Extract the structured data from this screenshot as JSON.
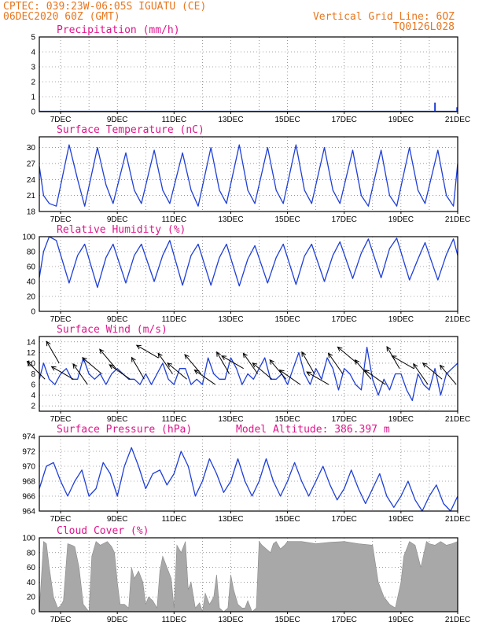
{
  "header": {
    "line1_left": "CPTEC:  039:23W-06:05S  IGUATU (CE)",
    "line2_left": "06DEC2020 60Z (GMT)",
    "line1_right": "Vertical Grid Line: 6OZ",
    "line2_right": "TQ0126L028"
  },
  "colors": {
    "header": "#e8761e",
    "title": "#e0148c",
    "line": "#1f3fd6",
    "cloud": "#a8a8a8",
    "arrow": "#000000"
  },
  "x_axis": {
    "ticks": [
      {
        "label": "7DEC",
        "day": 7
      },
      {
        "label": "9DEC",
        "day": 9
      },
      {
        "label": "11DEC",
        "day": 11
      },
      {
        "label": "13DEC",
        "day": 13
      },
      {
        "label": "15DEC",
        "day": 15
      },
      {
        "label": "17DEC",
        "day": 17
      },
      {
        "label": "19DEC",
        "day": 19
      },
      {
        "label": "21DEC",
        "day": 21
      }
    ],
    "range": [
      6.25,
      21.0
    ]
  },
  "chart_data": [
    {
      "type": "bar",
      "id": "precip",
      "title": "Precipitation (mm/h)",
      "ylim": [
        0,
        5
      ],
      "yticks": [
        0,
        1,
        2,
        3,
        4,
        5
      ],
      "x": [
        20.2,
        20.98
      ],
      "values": [
        0.6,
        0.3
      ],
      "baseline_note": ""
    },
    {
      "type": "line",
      "id": "temp",
      "title": "Surface Temperature (nC)",
      "ylim": [
        18,
        32
      ],
      "yticks": [
        18,
        21,
        24,
        27,
        30
      ],
      "x": [
        6.25,
        6.4,
        6.6,
        6.85,
        7.3,
        7.6,
        7.85,
        8.3,
        8.6,
        8.85,
        9.3,
        9.6,
        9.85,
        10.3,
        10.6,
        10.85,
        11.3,
        11.6,
        11.85,
        12.3,
        12.6,
        12.85,
        13.3,
        13.6,
        13.85,
        14.3,
        14.6,
        14.85,
        15.3,
        15.6,
        15.85,
        16.3,
        16.6,
        16.85,
        17.3,
        17.6,
        17.85,
        18.3,
        18.6,
        18.85,
        19.3,
        19.6,
        19.85,
        20.3,
        20.6,
        20.85,
        21.0
      ],
      "values": [
        26.5,
        21,
        19.5,
        19,
        30.5,
        24,
        19,
        30,
        23,
        19.5,
        29,
        22,
        19.5,
        29.5,
        22,
        19.5,
        29,
        22,
        19,
        30,
        22,
        19.5,
        30.5,
        22,
        19.5,
        30,
        22,
        19.5,
        30.5,
        22,
        19.5,
        30,
        22,
        19.5,
        29.5,
        21,
        19,
        29.5,
        21,
        19,
        30,
        22,
        19.5,
        29.5,
        21,
        19,
        27
      ]
    },
    {
      "type": "line",
      "id": "rh",
      "title": "Relative Humidity (%)",
      "ylim": [
        0,
        100
      ],
      "yticks": [
        0,
        20,
        40,
        60,
        80,
        100
      ],
      "x": [
        6.25,
        6.4,
        6.6,
        6.85,
        7.3,
        7.6,
        7.85,
        8.3,
        8.6,
        8.85,
        9.3,
        9.6,
        9.85,
        10.3,
        10.6,
        10.85,
        11.3,
        11.6,
        11.85,
        12.3,
        12.6,
        12.85,
        13.3,
        13.6,
        13.85,
        14.3,
        14.6,
        14.85,
        15.3,
        15.6,
        15.85,
        16.3,
        16.6,
        16.85,
        17.3,
        17.6,
        17.85,
        18.3,
        18.6,
        18.85,
        19.3,
        19.6,
        19.85,
        20.3,
        20.6,
        20.85,
        21.0
      ],
      "values": [
        45,
        80,
        100,
        95,
        38,
        75,
        90,
        32,
        72,
        90,
        38,
        75,
        90,
        40,
        75,
        95,
        35,
        75,
        90,
        35,
        72,
        90,
        34,
        70,
        88,
        38,
        72,
        90,
        36,
        74,
        90,
        40,
        75,
        93,
        44,
        78,
        97,
        45,
        84,
        98,
        42,
        70,
        92,
        42,
        76,
        97,
        75
      ]
    },
    {
      "type": "line",
      "id": "wind",
      "title": "Surface Wind (m/s)",
      "ylim": [
        1,
        15
      ],
      "yticks": [
        2,
        4,
        6,
        8,
        10,
        12,
        14
      ],
      "x": [
        6.25,
        6.4,
        6.6,
        6.8,
        7.0,
        7.2,
        7.4,
        7.6,
        7.8,
        8.0,
        8.2,
        8.4,
        8.6,
        8.8,
        9.0,
        9.2,
        9.4,
        9.6,
        9.8,
        10.0,
        10.2,
        10.4,
        10.6,
        10.8,
        11.0,
        11.2,
        11.4,
        11.6,
        11.8,
        12.0,
        12.2,
        12.4,
        12.6,
        12.8,
        13.0,
        13.2,
        13.4,
        13.6,
        13.8,
        14.0,
        14.2,
        14.4,
        14.6,
        14.8,
        15.0,
        15.2,
        15.4,
        15.6,
        15.8,
        16.0,
        16.2,
        16.4,
        16.6,
        16.8,
        17.0,
        17.2,
        17.4,
        17.6,
        17.8,
        18.0,
        18.2,
        18.4,
        18.6,
        18.8,
        19.0,
        19.2,
        19.4,
        19.6,
        19.8,
        20.0,
        20.2,
        20.4,
        20.6,
        20.8,
        21.0
      ],
      "values": [
        7,
        10,
        7,
        6,
        8,
        9,
        7,
        7,
        11,
        8,
        7,
        8,
        6,
        8,
        9,
        8,
        7,
        7,
        6,
        8,
        6,
        8,
        10,
        7,
        6,
        9,
        9,
        6,
        7,
        6,
        11,
        8,
        7,
        7,
        11,
        9,
        6,
        8,
        7,
        9,
        11,
        7,
        7,
        8,
        6,
        9,
        12,
        8,
        6,
        9,
        7,
        11,
        9,
        5,
        9,
        8,
        6,
        5,
        13,
        7,
        4,
        7,
        5,
        8,
        8,
        5,
        3,
        8,
        6,
        5,
        9,
        4,
        8,
        9,
        10
      ]
    },
    {
      "type": "line",
      "id": "press",
      "title": "Surface Pressure (hPa)",
      "subtitle": "Model Altitude: 386.397 m",
      "ylim": [
        964,
        974
      ],
      "yticks": [
        964,
        966,
        968,
        970,
        972,
        974
      ],
      "x": [
        6.25,
        6.5,
        6.75,
        7.0,
        7.25,
        7.5,
        7.75,
        8.0,
        8.25,
        8.5,
        8.75,
        9.0,
        9.25,
        9.5,
        9.75,
        10.0,
        10.25,
        10.5,
        10.75,
        11.0,
        11.25,
        11.5,
        11.75,
        12.0,
        12.25,
        12.5,
        12.75,
        13.0,
        13.25,
        13.5,
        13.75,
        14.0,
        14.25,
        14.5,
        14.75,
        15.0,
        15.25,
        15.5,
        15.75,
        16.0,
        16.25,
        16.5,
        16.75,
        17.0,
        17.25,
        17.5,
        17.75,
        18.0,
        18.25,
        18.5,
        18.75,
        19.0,
        19.25,
        19.5,
        19.75,
        20.0,
        20.25,
        20.5,
        20.75,
        21.0
      ],
      "values": [
        967,
        970,
        970.5,
        968,
        966,
        968,
        969.5,
        966,
        967,
        970.5,
        969,
        966,
        970,
        972.5,
        970,
        967,
        969,
        969.5,
        967.5,
        969,
        972,
        970,
        966,
        968,
        971,
        969,
        966.5,
        968,
        971,
        968,
        966,
        968,
        971,
        968,
        966,
        968,
        970.5,
        968,
        966,
        968,
        970,
        967.5,
        965.5,
        967,
        969.5,
        967,
        965,
        967,
        969,
        966,
        964.5,
        966,
        968,
        965.5,
        964,
        966,
        967.5,
        965,
        964,
        966
      ]
    },
    {
      "type": "area",
      "id": "cloud",
      "title": "Cloud Cover (%)",
      "ylim": [
        0,
        100
      ],
      "yticks": [
        0,
        20,
        40,
        60,
        80,
        100
      ],
      "x": [
        6.25,
        6.4,
        6.5,
        6.6,
        6.75,
        6.9,
        7.0,
        7.1,
        7.25,
        7.4,
        7.5,
        7.65,
        7.8,
        7.9,
        8.0,
        8.1,
        8.25,
        8.4,
        8.5,
        8.65,
        8.8,
        8.9,
        9.0,
        9.1,
        9.25,
        9.4,
        9.5,
        9.6,
        9.75,
        9.9,
        10.0,
        10.1,
        10.25,
        10.4,
        10.5,
        10.6,
        10.75,
        10.9,
        11.0,
        11.1,
        11.25,
        11.4,
        11.5,
        11.6,
        11.75,
        11.9,
        12.0,
        12.1,
        12.25,
        12.4,
        12.5,
        12.6,
        12.75,
        12.9,
        13.0,
        13.1,
        13.25,
        13.4,
        13.5,
        13.6,
        13.75,
        13.9,
        14.0,
        14.1,
        14.25,
        14.4,
        14.5,
        14.6,
        14.75,
        14.9,
        15.0,
        15.5,
        16.0,
        16.5,
        17.0,
        17.5,
        18.0,
        18.2,
        18.4,
        18.6,
        18.8,
        19.0,
        19.1,
        19.3,
        19.5,
        19.7,
        19.9,
        20.0,
        20.2,
        20.4,
        20.6,
        20.8,
        21.0
      ],
      "values": [
        0,
        95,
        92,
        60,
        20,
        5,
        8,
        15,
        92,
        90,
        88,
        60,
        10,
        5,
        0,
        75,
        95,
        90,
        92,
        95,
        88,
        80,
        40,
        10,
        10,
        5,
        60,
        45,
        55,
        40,
        10,
        20,
        15,
        5,
        55,
        75,
        60,
        45,
        5,
        90,
        80,
        95,
        30,
        40,
        5,
        12,
        0,
        25,
        10,
        20,
        50,
        5,
        0,
        5,
        50,
        30,
        10,
        5,
        5,
        15,
        0,
        5,
        95,
        90,
        85,
        80,
        92,
        95,
        85,
        90,
        95,
        95,
        92,
        94,
        95,
        92,
        90,
        40,
        20,
        10,
        5,
        40,
        75,
        95,
        90,
        60,
        95,
        92,
        90,
        95,
        90,
        92,
        95
      ]
    }
  ],
  "wind_vectors": {
    "x": [
      6.45,
      6.95,
      7.45,
      7.95,
      8.45,
      8.95,
      9.45,
      9.95,
      10.45,
      10.95,
      11.45,
      11.95,
      12.45,
      12.95,
      13.45,
      13.95,
      14.45,
      14.95,
      15.45,
      15.95,
      16.45,
      16.95,
      17.45,
      17.95,
      18.45,
      18.95,
      19.45,
      19.95,
      20.45,
      20.95
    ],
    "speed": [
      7,
      10,
      7,
      6,
      8,
      9,
      7,
      7,
      11,
      8,
      7,
      8,
      6,
      8,
      9,
      8,
      7,
      7,
      6,
      8,
      6,
      8,
      10,
      7,
      6,
      9,
      9,
      6,
      7,
      6
    ],
    "dir_deg": [
      135,
      120,
      150,
      125,
      140,
      130,
      145,
      120,
      150,
      125,
      140,
      130,
      145,
      120,
      150,
      125,
      140,
      130,
      145,
      120,
      150,
      125,
      140,
      130,
      145,
      120,
      150,
      125,
      140,
      130
    ]
  }
}
